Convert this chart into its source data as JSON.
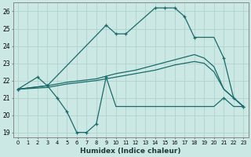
{
  "xlabel": "Humidex (Indice chaleur)",
  "xlim": [
    -0.5,
    23.5
  ],
  "ylim": [
    18.7,
    26.5
  ],
  "yticks": [
    19,
    20,
    21,
    22,
    23,
    24,
    25,
    26
  ],
  "xticks": [
    0,
    1,
    2,
    3,
    4,
    5,
    6,
    7,
    8,
    9,
    10,
    11,
    12,
    13,
    14,
    15,
    16,
    17,
    18,
    19,
    20,
    21,
    22,
    23
  ],
  "bg_color": "#cce8e4",
  "line_color": "#1a6b6b",
  "grid_color": "#aacfca",
  "top_x": [
    0,
    2,
    3,
    9,
    10,
    11,
    14,
    15,
    16,
    17,
    18,
    19,
    20,
    21,
    22,
    23
  ],
  "top_y": [
    21.5,
    22.2,
    21.7,
    25.2,
    24.7,
    24.7,
    26.2,
    26.2,
    26.2,
    25.7,
    24.5,
    24.5,
    24.5,
    23.3,
    21.0,
    20.5
  ],
  "top_markers_x": [
    0,
    2,
    3,
    9,
    10,
    11,
    14,
    15,
    16,
    17,
    18,
    21,
    22,
    23
  ],
  "top_markers_y": [
    21.5,
    22.2,
    21.7,
    25.2,
    24.7,
    24.7,
    26.2,
    26.2,
    26.2,
    25.7,
    24.5,
    23.3,
    21.0,
    20.5
  ],
  "bot_x": [
    0,
    3,
    4,
    5,
    6,
    7,
    8,
    9,
    10,
    11,
    12,
    13,
    14,
    15,
    16,
    17,
    18,
    19,
    20,
    21,
    22,
    23
  ],
  "bot_y": [
    21.5,
    21.7,
    21.0,
    20.2,
    19.0,
    19.0,
    19.5,
    22.2,
    20.5,
    20.5,
    20.5,
    20.5,
    20.5,
    20.5,
    20.5,
    20.5,
    20.5,
    20.5,
    20.5,
    21.0,
    20.5,
    20.5
  ],
  "bot_markers_x": [
    0,
    3,
    4,
    5,
    6,
    7,
    8,
    9,
    21,
    23
  ],
  "bot_markers_y": [
    21.5,
    21.7,
    21.0,
    20.2,
    19.0,
    19.0,
    19.5,
    22.2,
    21.0,
    20.5
  ],
  "mid1_x": [
    0,
    3,
    5,
    8,
    10,
    12,
    14,
    16,
    18,
    19,
    20,
    21,
    22,
    23
  ],
  "mid1_y": [
    21.5,
    21.7,
    21.9,
    22.1,
    22.4,
    22.6,
    22.9,
    23.2,
    23.5,
    23.3,
    22.8,
    21.5,
    21.0,
    20.5
  ],
  "mid2_x": [
    0,
    3,
    5,
    8,
    10,
    12,
    14,
    16,
    18,
    19,
    20,
    21,
    22,
    23
  ],
  "mid2_y": [
    21.5,
    21.6,
    21.8,
    22.0,
    22.2,
    22.4,
    22.6,
    22.9,
    23.1,
    23.0,
    22.5,
    21.5,
    21.0,
    20.5
  ]
}
